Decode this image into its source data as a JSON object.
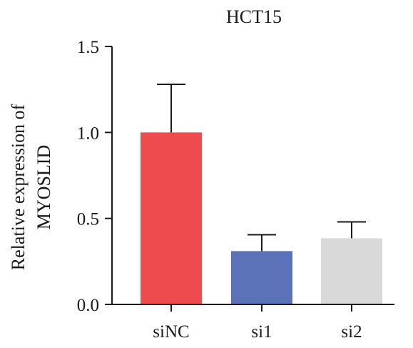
{
  "chart_data": {
    "type": "bar",
    "title": "HCT15",
    "ylabel_lines": [
      "Relative expression of",
      "MYOSLID"
    ],
    "categories": [
      "siNC",
      "si1",
      "si2"
    ],
    "values": [
      1.0,
      0.31,
      0.385
    ],
    "errors": [
      0.28,
      0.095,
      0.095
    ],
    "colors": [
      "#ee4b4f",
      "#5b72b8",
      "#d9d9d9"
    ],
    "ylim": [
      0,
      1.5
    ],
    "yticks": [
      0.0,
      0.5,
      1.0,
      1.5
    ],
    "ytick_labels": [
      "0.0",
      "0.5",
      "1.0",
      "1.5"
    ],
    "grid": false,
    "legend": "none"
  }
}
